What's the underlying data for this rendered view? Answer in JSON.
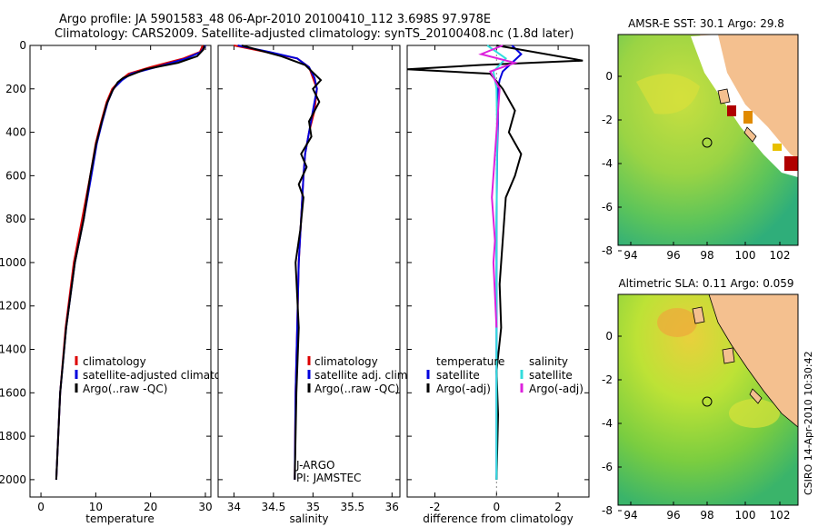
{
  "title_line1": "Argo profile: JA 5901583_48 06-Apr-2010 20100410_112 3.698S 97.978E",
  "title_line2": "Climatology: CARS2009. Satellite-adjusted climatology: synTS_20100408.nc (1.8d later)",
  "colors": {
    "climatology": "#dd0000",
    "satellite": "#0000dd",
    "argo": "#000000",
    "sal_satellite": "#33dddd",
    "sal_argo": "#dd22dd",
    "land": "#f4c08f"
  },
  "chart_data": [
    {
      "type": "line",
      "name": "temperature-panel",
      "xlabel": "temperature",
      "ylabel": "",
      "xlim": [
        -2,
        31
      ],
      "ylim": [
        2080,
        0
      ],
      "xticks": [
        0,
        10,
        20,
        30
      ],
      "yticks": [
        0,
        200,
        400,
        600,
        800,
        1000,
        1200,
        1400,
        1600,
        1800,
        2000
      ],
      "legend": [
        "climatology",
        "satellite-adjusted climatology",
        "Argo(..raw -QC)"
      ],
      "series": [
        {
          "name": "climatology",
          "color_key": "climatology",
          "x": [
            29.5,
            29.0,
            26.0,
            20.0,
            16.0,
            14.5,
            13.0,
            12.0,
            11.0,
            10.0,
            9.0,
            7.5,
            6.0,
            4.5,
            3.5,
            2.8
          ],
          "y": [
            0,
            30,
            60,
            100,
            130,
            160,
            200,
            260,
            350,
            450,
            600,
            800,
            1000,
            1300,
            1600,
            2000
          ]
        },
        {
          "name": "satellite-adjusted",
          "color_key": "satellite",
          "x": [
            30.0,
            29.2,
            26.5,
            21.0,
            16.5,
            14.8,
            13.2,
            12.2,
            11.2,
            10.2,
            9.2,
            7.8,
            6.2,
            4.6,
            3.5,
            2.8
          ],
          "y": [
            0,
            30,
            60,
            100,
            130,
            160,
            200,
            260,
            350,
            450,
            600,
            800,
            1000,
            1300,
            1600,
            2000
          ]
        },
        {
          "name": "Argo",
          "color_key": "argo",
          "x": [
            29.8,
            29.6,
            28.5,
            25.0,
            19.0,
            17.0,
            15.0,
            14.0,
            13.0,
            12.0,
            11.0,
            10.0,
            9.0,
            7.8,
            6.2,
            4.6,
            3.5,
            2.8
          ],
          "y": [
            0,
            20,
            50,
            80,
            110,
            130,
            150,
            170,
            210,
            270,
            360,
            460,
            600,
            800,
            1000,
            1300,
            1600,
            2000
          ]
        }
      ]
    },
    {
      "type": "line",
      "name": "salinity-panel",
      "xlabel": "salinity",
      "ylabel": "",
      "xlim": [
        33.8,
        36.1
      ],
      "ylim": [
        2080,
        0
      ],
      "xticks": [
        34,
        34.5,
        35,
        35.5,
        36
      ],
      "legend": [
        "climatology",
        "satellite adj. clim.",
        "Argo(..raw -QC)"
      ],
      "annotations": [
        "J-ARGO",
        "PI: JAMSTEC"
      ],
      "series": [
        {
          "name": "climatology",
          "color_key": "climatology",
          "x": [
            34.0,
            34.4,
            34.8,
            34.95,
            35.0,
            35.05,
            35.02,
            34.95,
            34.9,
            34.88,
            34.85,
            34.82,
            34.8,
            34.78,
            34.77
          ],
          "y": [
            0,
            30,
            60,
            100,
            150,
            200,
            300,
            400,
            500,
            600,
            800,
            1000,
            1300,
            1600,
            2000
          ]
        },
        {
          "name": "satellite-adjusted",
          "color_key": "satellite",
          "x": [
            34.05,
            34.45,
            34.8,
            34.95,
            35.02,
            35.05,
            35.0,
            34.95,
            34.9,
            34.88,
            34.85,
            34.82,
            34.8,
            34.78,
            34.77
          ],
          "y": [
            0,
            30,
            60,
            100,
            150,
            200,
            300,
            400,
            500,
            600,
            800,
            1000,
            1300,
            1600,
            2000
          ]
        },
        {
          "name": "Argo",
          "color_key": "argo",
          "x": [
            34.1,
            34.3,
            34.6,
            34.9,
            35.1,
            35.0,
            35.08,
            34.95,
            34.98,
            34.85,
            34.92,
            34.82,
            34.88,
            34.84,
            34.78,
            34.82,
            34.79,
            34.77
          ],
          "y": [
            0,
            20,
            50,
            90,
            160,
            200,
            260,
            350,
            420,
            500,
            560,
            640,
            700,
            850,
            1000,
            1300,
            1600,
            2000
          ]
        }
      ]
    },
    {
      "type": "line",
      "name": "difference-panel",
      "xlabel": "difference from climatology",
      "ylabel": "",
      "xlim": [
        -2.9,
        3.0
      ],
      "ylim": [
        2080,
        0
      ],
      "xticks": [
        -2,
        0,
        2
      ],
      "legend": [
        "temperature",
        "satellite",
        "Argo(-adj)",
        "salinity",
        "satellite",
        "Argo(-adj)"
      ],
      "series": [
        {
          "name": "temp-satellite",
          "color_key": "satellite",
          "x": [
            0.5,
            0.8,
            0.5,
            0.2,
            0.1,
            0.05,
            0.05,
            0.02,
            0.0,
            0.0,
            0.0,
            0.0,
            0.0
          ],
          "y": [
            0,
            40,
            80,
            120,
            160,
            200,
            300,
            500,
            800,
            1100,
            1400,
            1700,
            2000
          ]
        },
        {
          "name": "temp-argo",
          "color_key": "argo",
          "x": [
            0.0,
            2.8,
            -0.5,
            -2.9,
            -0.2,
            0.2,
            0.6,
            0.4,
            0.8,
            0.6,
            0.3,
            0.2,
            0.1,
            0.15,
            0.0,
            0.05,
            0.0
          ],
          "y": [
            0,
            70,
            90,
            110,
            130,
            200,
            300,
            400,
            500,
            600,
            700,
            900,
            1100,
            1300,
            1500,
            1700,
            2000
          ]
        },
        {
          "name": "sal-satellite",
          "color_key": "sal_satellite",
          "x": [
            -0.3,
            0.3,
            -0.1,
            0.0,
            0.02,
            0.0,
            0.0,
            0.0
          ],
          "y": [
            0,
            60,
            120,
            200,
            400,
            800,
            1400,
            2000
          ]
        },
        {
          "name": "sal-argo",
          "color_key": "sal_argo",
          "x": [
            0.2,
            -0.5,
            0.6,
            -0.2,
            0.1,
            0.0,
            -0.15,
            -0.05,
            -0.1,
            0.0
          ],
          "y": [
            0,
            40,
            80,
            120,
            200,
            400,
            700,
            900,
            1000,
            1300
          ]
        }
      ]
    }
  ],
  "maps": {
    "sst": {
      "title": "AMSR-E SST: 30.1 Argo: 29.8",
      "xticks": [
        "94",
        "96",
        "98",
        "100",
        "102"
      ],
      "yticks": [
        "0",
        "-2",
        "-4",
        "-6",
        "-8"
      ]
    },
    "sla": {
      "title": "Altimetric SLA: 0.11 Argo: 0.059",
      "xticks": [
        "94",
        "96",
        "98",
        "100",
        "102"
      ],
      "yticks": [
        "0",
        "-2",
        "-4",
        "-6",
        "-8"
      ]
    }
  },
  "footer_stamp": "CSIRO 14-Apr-2010 10:30:42"
}
